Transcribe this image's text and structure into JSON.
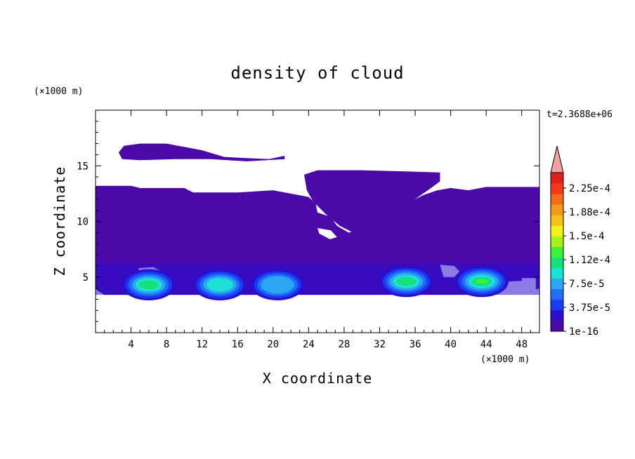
{
  "chart_data": {
    "type": "heatmap",
    "title": "density of cloud",
    "xlabel": "X coordinate",
    "ylabel": "Z coordinate",
    "x_unit": "(×1000 m)",
    "y_unit": "(×1000 m)",
    "time_label": "t=2.3688e+06",
    "xlim": [
      0,
      50
    ],
    "ylim": [
      0,
      20
    ],
    "x_ticks": [
      "4",
      "8",
      "12",
      "16",
      "20",
      "24",
      "28",
      "32",
      "36",
      "40",
      "44",
      "48"
    ],
    "y_ticks": [
      "5",
      "10",
      "15"
    ],
    "colorbar": {
      "labels": [
        "2.25e-4",
        "1.88e-4",
        "1.5e-4",
        "1.12e-4",
        "7.5e-5",
        "3.75e-5",
        "1e-16"
      ],
      "colors": [
        "#4b0aa8",
        "#2a0fd0",
        "#1a3cf0",
        "#1f6ef5",
        "#2aa6f2",
        "#1de0d6",
        "#17e07a",
        "#3cf23a",
        "#a8f21a",
        "#f2f21a",
        "#f2c21a",
        "#f29a1a",
        "#f26a1a",
        "#f23a1a",
        "#e0201a"
      ],
      "overflow_color": "#f2a0a0"
    },
    "background_level_color": "#4b0aa8",
    "cores": [
      {
        "x": 6,
        "z": 4.3,
        "max_level": 6
      },
      {
        "x": 14,
        "z": 4.3,
        "max_level": 5
      },
      {
        "x": 20.5,
        "z": 4.3,
        "max_level": 4
      },
      {
        "x": 35,
        "z": 4.6,
        "max_level": 6
      },
      {
        "x": 43.5,
        "z": 4.6,
        "max_level": 7
      }
    ],
    "grid": false
  }
}
